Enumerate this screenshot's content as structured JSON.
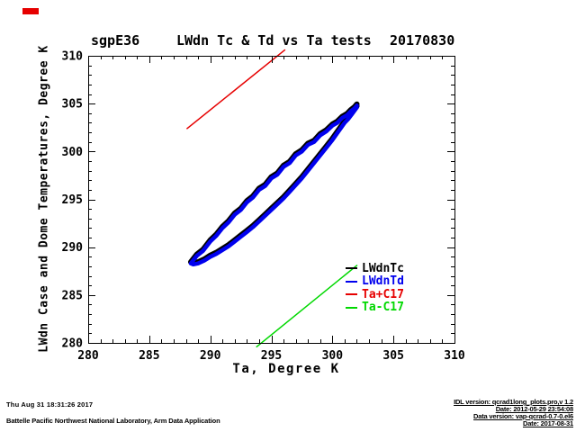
{
  "header": {
    "site": "sgpE36",
    "title": "LWdn Tc & Td vs Ta tests",
    "date": "20170830"
  },
  "axes": {
    "x_title": "Ta, Degree K",
    "y_title": "LWdn Case and Dome Temperatures, Degree K",
    "x_ticks": [
      "280",
      "285",
      "290",
      "295",
      "300",
      "305",
      "310"
    ],
    "y_ticks": [
      "280",
      "285",
      "290",
      "295",
      "300",
      "305",
      "310"
    ],
    "x_range": [
      280,
      310
    ],
    "y_range": [
      280,
      310
    ]
  },
  "legend": {
    "items": [
      {
        "label": "LWdnTc",
        "color": "#000000"
      },
      {
        "label": "LWdnTd",
        "color": "#0000ee"
      },
      {
        "label": "Ta+C17",
        "color": "#e60000"
      },
      {
        "label": "Ta-C17",
        "color": "#00d800"
      }
    ]
  },
  "footer": {
    "timestamp": "Thu Aug 31 18:31:26 2017",
    "organization": "Battelle Pacific Northwest National Laboratory, Arm Data Application"
  },
  "fineprint": {
    "line1": "IDL version: qcrad1long_plots.pro,v 1.2",
    "line2": "Date: 2012-05-29 23:54:08",
    "line3": "Data version: vap-qcrad-0.7-0.el6",
    "line4": "Date: 2017-08-31"
  },
  "colors": {
    "black": "#000000",
    "blue": "#0000ee",
    "red": "#e60000",
    "green": "#00d800",
    "background": "#ffffff"
  },
  "chart_data": {
    "type": "line",
    "title": "sgpE36  LWdn Tc & Td vs Ta tests  20170830",
    "xlabel": "Ta, Degree K",
    "ylabel": "LWdn Case and Dome Temperatures, Degree K",
    "xlim": [
      280,
      310
    ],
    "ylim": [
      280,
      310
    ],
    "grid": false,
    "legend_position": "inside lower-right",
    "x_major_ticks": [
      280,
      285,
      290,
      295,
      300,
      305,
      310
    ],
    "minor_tick_interval": 1,
    "series": [
      {
        "name": "LWdnTc",
        "color": "#000000",
        "style": "thick line (case temperature), coincident hysteresis loop drawn under LWdnTd",
        "points_ref": "LWdnTd",
        "offset_k": 0.15
      },
      {
        "name": "LWdnTd",
        "color": "#0000ee",
        "style": "thick line (dome temperature), diurnal hysteresis loop vs air temperature",
        "points": [
          [
            288.4,
            288.3
          ],
          [
            288.9,
            289.1
          ],
          [
            289.4,
            289.6
          ],
          [
            290.0,
            290.6
          ],
          [
            290.5,
            291.2
          ],
          [
            291.0,
            292.0
          ],
          [
            291.5,
            292.6
          ],
          [
            292.0,
            293.4
          ],
          [
            292.5,
            293.9
          ],
          [
            293.0,
            294.7
          ],
          [
            293.5,
            295.2
          ],
          [
            294.0,
            296.0
          ],
          [
            294.5,
            296.4
          ],
          [
            295.0,
            297.2
          ],
          [
            295.5,
            297.6
          ],
          [
            296.0,
            298.4
          ],
          [
            296.5,
            298.8
          ],
          [
            297.0,
            299.6
          ],
          [
            297.5,
            300.0
          ],
          [
            298.0,
            300.7
          ],
          [
            298.5,
            301.0
          ],
          [
            299.0,
            301.7
          ],
          [
            299.5,
            302.1
          ],
          [
            300.0,
            302.7
          ],
          [
            300.4,
            303.0
          ],
          [
            300.8,
            303.5
          ],
          [
            301.2,
            303.8
          ],
          [
            301.5,
            304.2
          ],
          [
            301.8,
            304.5
          ],
          [
            302.0,
            304.8
          ],
          [
            301.6,
            304.1
          ],
          [
            301.9,
            304.5
          ],
          [
            301.4,
            303.8
          ],
          [
            301.8,
            304.3
          ],
          [
            302.0,
            304.6
          ],
          [
            301.6,
            303.9
          ],
          [
            301.3,
            303.4
          ],
          [
            301.0,
            303.0
          ],
          [
            300.5,
            302.1
          ],
          [
            300.0,
            301.2
          ],
          [
            299.5,
            300.4
          ],
          [
            299.0,
            299.6
          ],
          [
            298.5,
            298.8
          ],
          [
            298.0,
            298.0
          ],
          [
            297.5,
            297.2
          ],
          [
            297.0,
            296.5
          ],
          [
            296.5,
            295.8
          ],
          [
            296.0,
            295.1
          ],
          [
            295.5,
            294.5
          ],
          [
            295.0,
            293.9
          ],
          [
            294.5,
            293.3
          ],
          [
            294.0,
            292.7
          ],
          [
            293.5,
            292.1
          ],
          [
            293.0,
            291.6
          ],
          [
            292.5,
            291.1
          ],
          [
            292.0,
            290.6
          ],
          [
            291.5,
            290.1
          ],
          [
            291.0,
            289.7
          ],
          [
            290.5,
            289.3
          ],
          [
            290.0,
            289.0
          ],
          [
            289.5,
            288.6
          ],
          [
            289.0,
            288.3
          ],
          [
            288.6,
            288.2
          ],
          [
            288.4,
            288.3
          ]
        ]
      },
      {
        "name": "Ta+C17",
        "color": "#e60000",
        "style": "thin straight reference line, clipped at top of axes",
        "points": [
          [
            288.1,
            302.4
          ],
          [
            296.1,
            310.6
          ]
        ]
      },
      {
        "name": "Ta-C17",
        "color": "#00d800",
        "style": "thin straight reference line, enters at bottom of axes",
        "points": [
          [
            293.8,
            279.6
          ],
          [
            302.0,
            288.1
          ]
        ]
      }
    ]
  }
}
